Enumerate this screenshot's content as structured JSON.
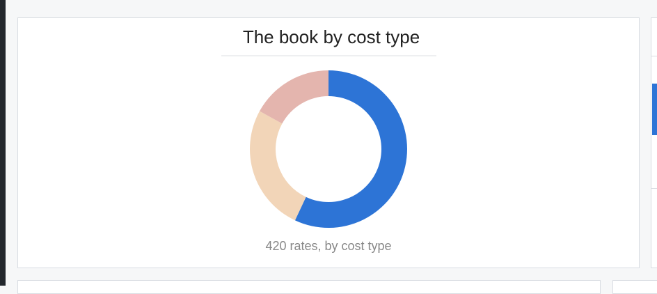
{
  "chart_data": {
    "type": "pie",
    "title": "The book by cost type",
    "caption": "420 rates, by cost type",
    "values": [
      57,
      26,
      17
    ],
    "colors": [
      "#2d74d6",
      "#f2d5b8",
      "#e4b5ae"
    ]
  }
}
